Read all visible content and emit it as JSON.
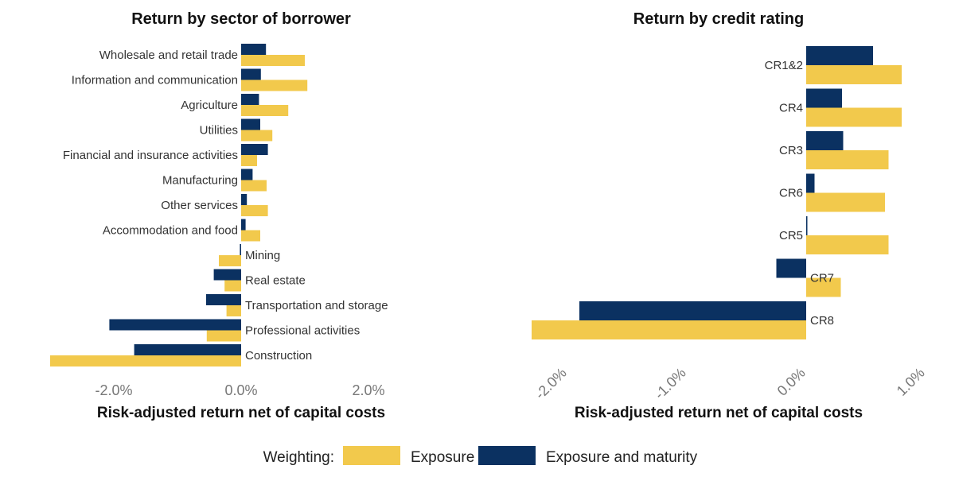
{
  "colors": {
    "exposure": "#F2C94C",
    "exposure_maturity": "#0B3161"
  },
  "legend": {
    "title": "Weighting:",
    "exposure": "Exposure",
    "exposure_maturity": "Exposure and maturity"
  },
  "chart_data": [
    {
      "type": "bar",
      "orientation": "horizontal",
      "title": "Return by sector of borrower",
      "xlabel": "Risk-adjusted return net of capital costs",
      "xlim": [
        -3.0,
        2.5
      ],
      "xticks": [
        -2.0,
        0.0,
        2.0
      ],
      "xtick_labels": [
        "-2.0%",
        "0.0%",
        "2.0%"
      ],
      "grid": false,
      "categories": [
        "Wholesale and retail trade",
        "Information and communication",
        "Agriculture",
        "Utilities",
        "Financial and insurance activities",
        "Manufacturing",
        "Other services",
        "Accommodation and food",
        "Mining",
        "Real estate",
        "Transportation and storage",
        "Professional activities",
        "Construction"
      ],
      "series": [
        {
          "name": "Exposure",
          "values": [
            1.0,
            1.04,
            0.74,
            0.49,
            0.25,
            0.4,
            0.42,
            0.3,
            -0.35,
            -0.26,
            -0.23,
            -0.54,
            -3.0
          ]
        },
        {
          "name": "Exposure and maturity",
          "values": [
            0.39,
            0.31,
            0.28,
            0.3,
            0.42,
            0.18,
            0.09,
            0.07,
            -0.02,
            -0.43,
            -0.55,
            -2.07,
            -1.68
          ]
        }
      ]
    },
    {
      "type": "bar",
      "orientation": "horizontal",
      "title": "Return by credit rating",
      "xlabel": "Risk-adjusted return net of capital costs",
      "xlim": [
        -2.3,
        1.0
      ],
      "xticks": [
        -2.0,
        -1.0,
        0.0,
        1.0
      ],
      "xtick_labels": [
        "-2.0%",
        "-1.0%",
        "0.0%",
        "1.0%"
      ],
      "grid": false,
      "categories": [
        "CR1&2",
        "CR4",
        "CR3",
        "CR6",
        "CR5",
        "CR7",
        "CR8"
      ],
      "series": [
        {
          "name": "Exposure",
          "values": [
            0.8,
            0.8,
            0.69,
            0.66,
            0.69,
            0.29,
            -2.3
          ]
        },
        {
          "name": "Exposure and maturity",
          "values": [
            0.56,
            0.3,
            0.31,
            0.07,
            0.01,
            -0.25,
            -1.9
          ]
        }
      ]
    }
  ]
}
